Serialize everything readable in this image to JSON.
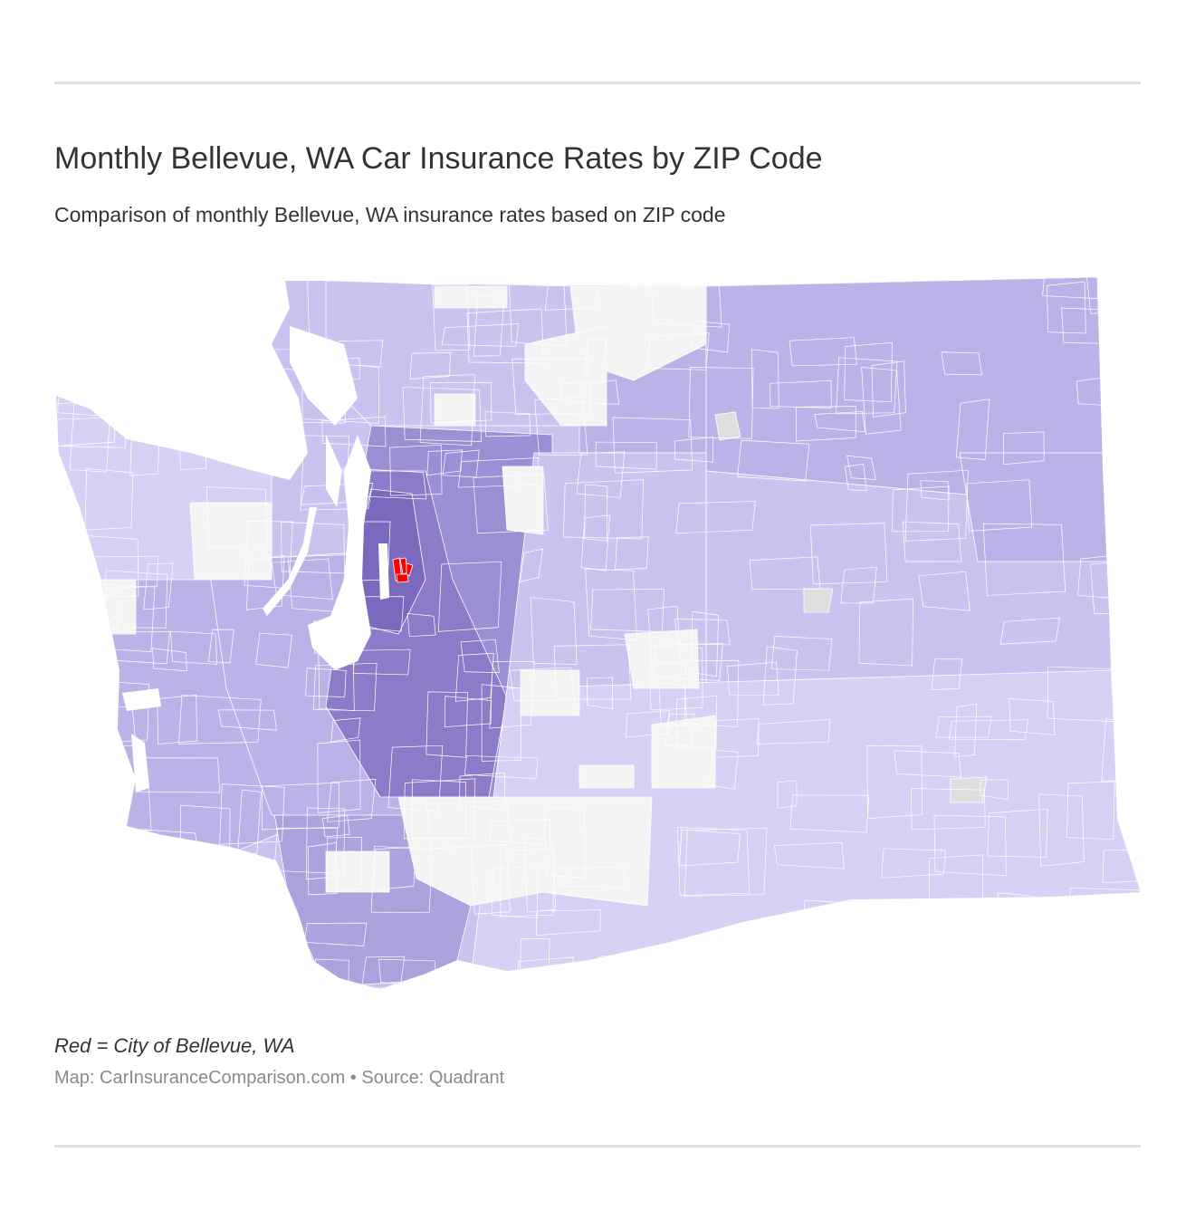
{
  "header": {
    "title": "Monthly Bellevue, WA Car Insurance Rates by ZIP Code",
    "subtitle": "Comparison of monthly Bellevue, WA insurance rates based on ZIP code"
  },
  "map": {
    "region": "Washington State ZIP codes",
    "colors": {
      "lightest": "#d8d0f5",
      "light": "#cbc2f0",
      "medium_light": "#bdb2e8",
      "medium": "#ada1de",
      "medium_dark": "#9d8fd4",
      "dark": "#8b7bc8",
      "darkest": "#7a69bd",
      "no_data": "#f4f4f4",
      "no_data_alt": "#dedede",
      "highlight_city": "#ff0000",
      "water": "#ffffff"
    },
    "highlighted_city": "Bellevue, WA"
  },
  "footer": {
    "legend_note": "Red = City of Bellevue, WA",
    "credit": "Map: CarInsuranceComparison.com • Source: Quadrant"
  }
}
